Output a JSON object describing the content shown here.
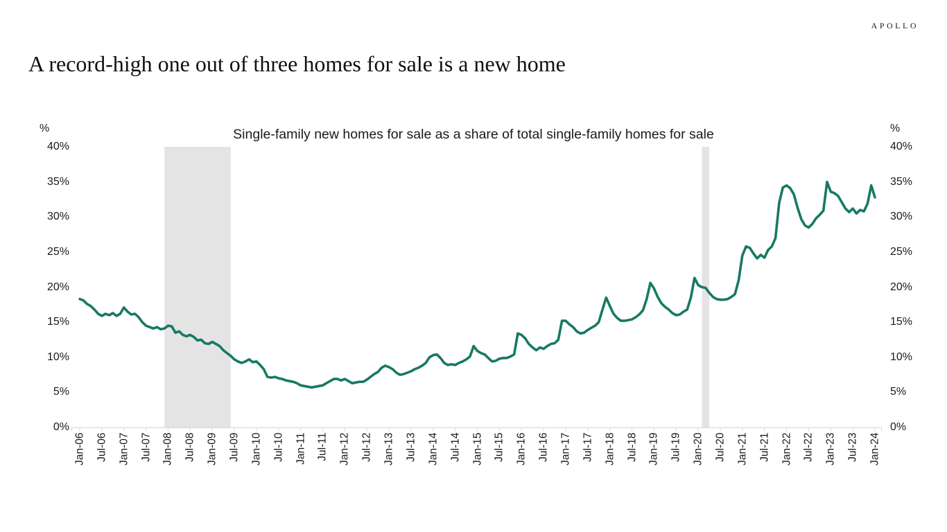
{
  "header": {
    "logo": "APOLLO",
    "title": "A record-high one out of three homes for sale is a new home"
  },
  "chart": {
    "subtitle": "Single-family new homes for sale as a share of total single-family homes for sale",
    "unit_label_left": "%",
    "unit_label_right": "%"
  },
  "chart_data": {
    "type": "line",
    "title": "Single-family new homes for sale as a share of total single-family homes for sale",
    "x_start": "2006-01",
    "x_end": "2024-01",
    "frequency": "monthly",
    "ylim": [
      0,
      40
    ],
    "y_unit": "%",
    "grid": false,
    "legend": "none",
    "line_color": "#177963",
    "band_color": "#e4e4e4",
    "axis_color": "#d6d6d6",
    "y_ticks": [
      {
        "value": 40,
        "label": "40%"
      },
      {
        "value": 35,
        "label": "35%"
      },
      {
        "value": 30,
        "label": "30%"
      },
      {
        "value": 25,
        "label": "25%"
      },
      {
        "value": 20,
        "label": "20%"
      },
      {
        "value": 15,
        "label": "15%"
      },
      {
        "value": 10,
        "label": "10%"
      },
      {
        "value": 5,
        "label": "5%"
      },
      {
        "value": 0,
        "label": "0%"
      }
    ],
    "x_tick_labels": [
      "Jan-06",
      "Jul-06",
      "Jan-07",
      "Jul-07",
      "Jan-08",
      "Jul-08",
      "Jan-09",
      "Jul-09",
      "Jan-10",
      "Jul-10",
      "Jan-11",
      "Jul-11",
      "Jan-12",
      "Jul-12",
      "Jan-13",
      "Jul-13",
      "Jan-14",
      "Jul-14",
      "Jan-15",
      "Jul-15",
      "Jan-16",
      "Jul-16",
      "Jan-17",
      "Jul-17",
      "Jan-18",
      "Jul-18",
      "Jan-19",
      "Jul-19",
      "Jan-20",
      "Jul-20",
      "Jan-21",
      "Jul-21",
      "Jan-22",
      "Jul-22",
      "Jan-23",
      "Jul-23",
      "Jan-24"
    ],
    "recession_bands": [
      {
        "start": "2007-12",
        "end": "2009-06"
      },
      {
        "start": "2020-02",
        "end": "2020-04"
      }
    ],
    "series": [
      {
        "name": "Single-family new homes for sale as a share of total single-family homes for sale",
        "values": [
          18.3,
          18.1,
          17.6,
          17.3,
          16.8,
          16.2,
          15.9,
          16.2,
          16.0,
          16.3,
          15.9,
          16.2,
          17.1,
          16.5,
          16.1,
          16.2,
          15.7,
          15.0,
          14.5,
          14.3,
          14.1,
          14.3,
          14.0,
          14.1,
          14.5,
          14.4,
          13.5,
          13.7,
          13.2,
          13.0,
          13.2,
          12.9,
          12.4,
          12.5,
          12.0,
          11.9,
          12.2,
          11.9,
          11.6,
          11.0,
          10.6,
          10.2,
          9.7,
          9.4,
          9.2,
          9.4,
          9.7,
          9.3,
          9.4,
          8.9,
          8.3,
          7.2,
          7.1,
          7.2,
          7.0,
          6.9,
          6.7,
          6.6,
          6.5,
          6.3,
          6.0,
          5.9,
          5.8,
          5.7,
          5.8,
          5.9,
          6.0,
          6.3,
          6.6,
          6.9,
          6.9,
          6.7,
          6.9,
          6.6,
          6.3,
          6.4,
          6.5,
          6.5,
          6.8,
          7.2,
          7.6,
          7.9,
          8.5,
          8.8,
          8.6,
          8.3,
          7.8,
          7.5,
          7.6,
          7.8,
          8.0,
          8.3,
          8.5,
          8.8,
          9.2,
          10.0,
          10.3,
          10.4,
          9.9,
          9.2,
          8.9,
          9.0,
          8.9,
          9.2,
          9.4,
          9.7,
          10.1,
          11.6,
          10.9,
          10.6,
          10.4,
          9.9,
          9.4,
          9.5,
          9.8,
          9.9,
          9.9,
          10.1,
          10.4,
          13.4,
          13.2,
          12.7,
          11.9,
          11.4,
          11.0,
          11.4,
          11.2,
          11.6,
          11.9,
          12.0,
          12.5,
          15.2,
          15.2,
          14.7,
          14.3,
          13.7,
          13.4,
          13.5,
          13.9,
          14.2,
          14.5,
          15.0,
          16.8,
          18.5,
          17.3,
          16.2,
          15.6,
          15.2,
          15.2,
          15.3,
          15.4,
          15.7,
          16.1,
          16.7,
          18.3,
          20.6,
          19.8,
          18.6,
          17.7,
          17.2,
          16.8,
          16.3,
          16.0,
          16.1,
          16.5,
          16.8,
          18.5,
          21.3,
          20.3,
          20.0,
          19.9,
          19.2,
          18.6,
          18.3,
          18.2,
          18.2,
          18.3,
          18.6,
          19.0,
          21.0,
          24.5,
          25.8,
          25.6,
          24.8,
          24.1,
          24.6,
          24.2,
          25.3,
          25.8,
          27.0,
          32.0,
          34.2,
          34.5,
          34.1,
          33.2,
          31.3,
          29.7,
          28.8,
          28.5,
          29.0,
          29.8,
          30.3,
          30.9,
          35.0,
          33.6,
          33.4,
          33.0,
          32.1,
          31.2,
          30.7,
          31.2,
          30.5,
          31.0,
          30.8,
          31.9,
          34.5,
          32.8
        ]
      }
    ]
  }
}
